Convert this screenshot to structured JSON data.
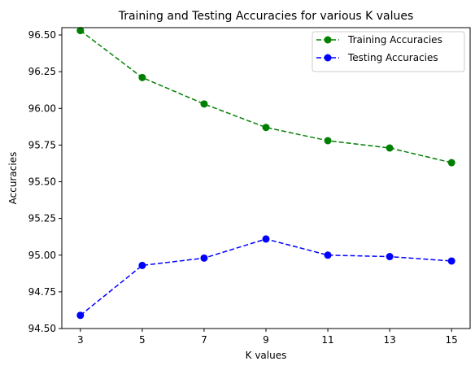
{
  "chart_data": {
    "type": "line",
    "title": "Training and Testing Accuracies for various K values",
    "xlabel": "K values",
    "ylabel": "Accuracies",
    "x": [
      3,
      5,
      7,
      9,
      11,
      13,
      15
    ],
    "x_ticks": [
      "3",
      "5",
      "7",
      "9",
      "11",
      "13",
      "15"
    ],
    "y_ticks": [
      "94.50",
      "94.75",
      "95.00",
      "95.25",
      "95.50",
      "95.75",
      "96.00",
      "96.25",
      "96.50"
    ],
    "ylim": [
      94.5,
      96.55
    ],
    "xlim": [
      2.4,
      15.6
    ],
    "grid": false,
    "legend_position": "top-right",
    "series": [
      {
        "name": "Training Accuracies",
        "color": "#008000",
        "line_style": "dashed",
        "marker": "circle",
        "values": [
          96.53,
          96.21,
          96.03,
          95.87,
          95.78,
          95.73,
          95.63
        ]
      },
      {
        "name": "Testing Accuracies",
        "color": "#0000ff",
        "line_style": "dashed",
        "marker": "circle",
        "values": [
          94.59,
          94.93,
          94.98,
          95.11,
          95.0,
          94.99,
          94.96
        ]
      }
    ]
  }
}
